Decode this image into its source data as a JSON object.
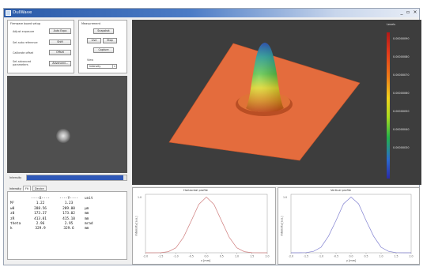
{
  "window": {
    "title": "DulWave",
    "controls": {
      "minimize": "_",
      "maximize": "▫",
      "close": "×"
    }
  },
  "firmware": {
    "group_title": "Firmware board setup",
    "rows": [
      {
        "label": "Adjust exposure",
        "button": "Auto Expo"
      },
      {
        "label": "Set auto reference",
        "button": "Shift"
      },
      {
        "label": "Calibrate offset",
        "button": "Offset"
      },
      {
        "label": "Set advanced parameters",
        "button": "Advanced..."
      }
    ]
  },
  "measurement": {
    "group_title": "Measurement",
    "snapshot": "Snapshot",
    "live": "Live",
    "stop": "Stop",
    "capture": "Capture",
    "view_label": "View",
    "view_value": "Intensity"
  },
  "intensity": {
    "label": "Intensity",
    "level": 0.97
  },
  "tabs": [
    {
      "label": "Intensity"
    },
    {
      "label": "Fit"
    },
    {
      "label": "Device"
    }
  ],
  "results": {
    "header": [
      "",
      "----X----",
      "----Y----",
      "unit"
    ],
    "rows": [
      [
        "M²",
        "1.22",
        "1.23",
        ""
      ],
      [
        "w0",
        "288.56",
        "289.00",
        "µm"
      ],
      [
        "z0",
        "173.37",
        "173.02",
        "mm"
      ],
      [
        "zR",
        "413.01",
        "415.10",
        "mm"
      ],
      [
        "theta",
        "2.96",
        "2.95",
        "mrad"
      ],
      [
        "k",
        "329.9",
        "329.6",
        "mm"
      ]
    ]
  },
  "colorbar": {
    "title": "Levels",
    "ticks": [
      "0.00000090",
      "0.00000080",
      "0.00000070",
      "0.00000060",
      "0.00000050",
      "0.00000040",
      "0.00000030"
    ],
    "colors": [
      "#b21818",
      "#f07a18",
      "#f2d41c",
      "#22b24a",
      "#2a6acf",
      "#2a2aa8"
    ]
  },
  "chart_data": [
    {
      "type": "line",
      "title": "Horizontal profile",
      "xlabel": "x [mm]",
      "ylabel": "Intensity [a.u.]",
      "ytick": "1.0",
      "xticks": [
        "-2.0",
        "-1.5",
        "-1.0",
        "-0.5",
        "0.0",
        "0.5",
        "1.0",
        "1.5",
        "2.0"
      ],
      "xlim": [
        -2.0,
        2.0
      ],
      "ylim": [
        0,
        1.05
      ],
      "series": [
        {
          "color": "#d08080",
          "x": [
            -2.0,
            -1.75,
            -1.5,
            -1.25,
            -1.0,
            -0.75,
            -0.5,
            -0.25,
            0.0,
            0.25,
            0.5,
            0.75,
            1.0,
            1.25,
            1.5,
            1.75,
            2.0
          ],
          "y": [
            0.0,
            0.0,
            0.002,
            0.02,
            0.09,
            0.28,
            0.57,
            0.87,
            1.0,
            0.87,
            0.57,
            0.28,
            0.09,
            0.02,
            0.002,
            0.0,
            0.0
          ]
        }
      ]
    },
    {
      "type": "line",
      "title": "Vertical profile",
      "xlabel": "y [mm]",
      "ylabel": "Intensity [a.u.]",
      "ytick": "1.0",
      "xticks": [
        "-2.0",
        "-1.5",
        "-1.0",
        "-0.5",
        "0.0",
        "0.5",
        "1.0",
        "1.5",
        "2.0"
      ],
      "xlim": [
        -2.0,
        2.0
      ],
      "ylim": [
        0,
        1.05
      ],
      "series": [
        {
          "color": "#8080d0",
          "x": [
            -2.0,
            -1.75,
            -1.5,
            -1.25,
            -1.0,
            -0.75,
            -0.5,
            -0.25,
            0.0,
            0.25,
            0.5,
            0.75,
            1.0,
            1.25,
            1.5,
            1.75,
            2.0
          ],
          "y": [
            0.0,
            0.0,
            0.003,
            0.025,
            0.1,
            0.3,
            0.58,
            0.88,
            1.0,
            0.88,
            0.58,
            0.3,
            0.1,
            0.025,
            0.003,
            0.0,
            0.0
          ]
        }
      ]
    }
  ]
}
